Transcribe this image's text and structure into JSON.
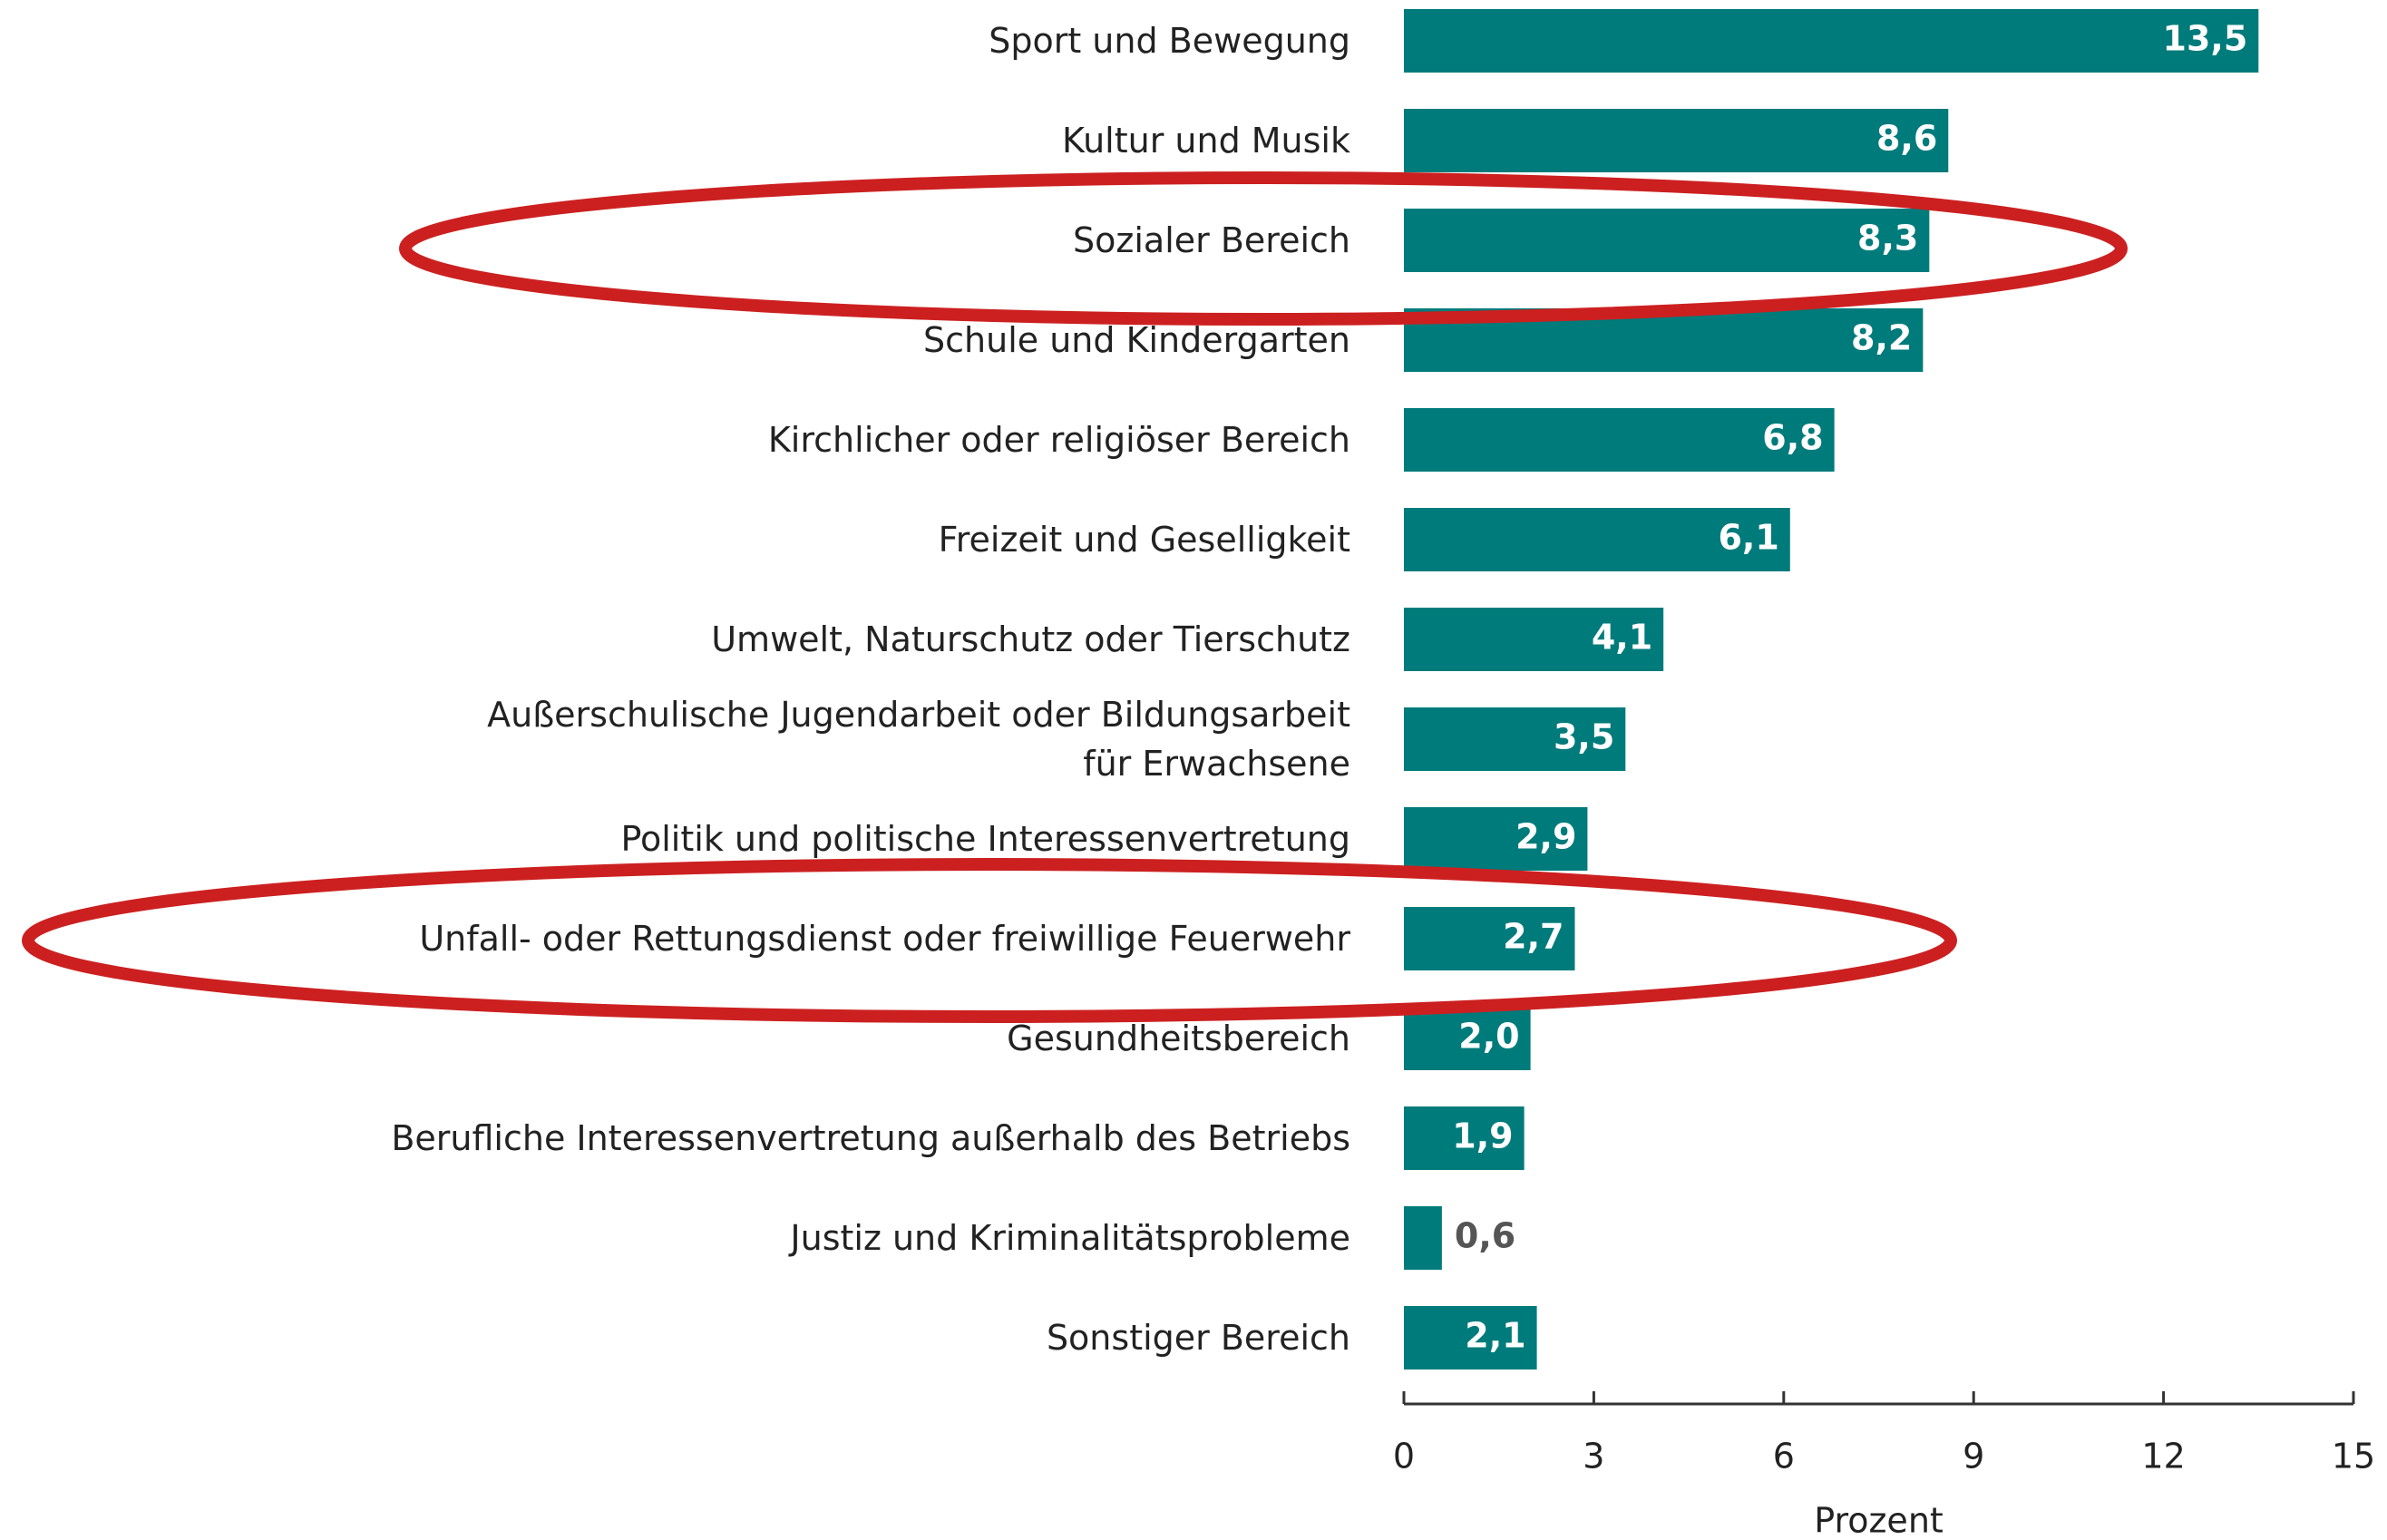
{
  "chart_data": {
    "type": "bar",
    "orientation": "horizontal",
    "categories": [
      "Sport und Bewegung",
      "Kultur und Musik",
      "Sozialer Bereich",
      "Schule und Kindergarten",
      "Kirchlicher oder religiöser Bereich",
      "Freizeit und Geselligkeit",
      "Umwelt, Naturschutz oder Tierschutz",
      "Außerschulische Jugendarbeit oder Bildungsarbeit\nfür Erwachsene",
      "Politik und politische Interessenvertretung",
      "Unfall- oder Rettungsdienst oder freiwillige Feuerwehr",
      "Gesundheitsbereich",
      "Berufliche Interessenvertretung außerhalb des Betriebs",
      "Justiz und Kriminalitätsprobleme",
      "Sonstiger Bereich"
    ],
    "values": [
      13.5,
      8.6,
      8.3,
      8.2,
      6.8,
      6.1,
      4.1,
      3.5,
      2.9,
      2.7,
      2.0,
      1.9,
      0.6,
      2.1
    ],
    "value_labels": [
      "13,5",
      "8,6",
      "8,3",
      "8,2",
      "6,8",
      "6,1",
      "4,1",
      "3,5",
      "2,9",
      "2,7",
      "2,0",
      "1,9",
      "0,6",
      "2,1"
    ],
    "color": "#007b7b",
    "xlim": [
      0,
      15
    ],
    "xticks": [
      0,
      3,
      6,
      9,
      12,
      15
    ],
    "xlabel": "Prozent"
  }
}
